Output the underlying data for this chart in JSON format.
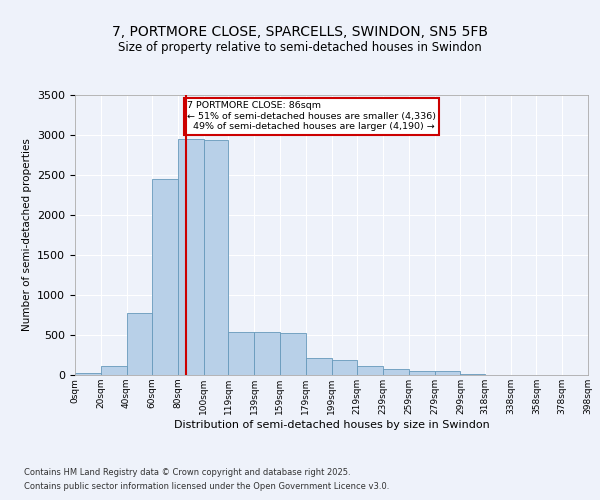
{
  "title_line1": "7, PORTMORE CLOSE, SPARCELLS, SWINDON, SN5 5FB",
  "title_line2": "Size of property relative to semi-detached houses in Swindon",
  "xlabel": "Distribution of semi-detached houses by size in Swindon",
  "ylabel": "Number of semi-detached properties",
  "property_label": "7 PORTMORE CLOSE: 86sqm",
  "pct_smaller": 51,
  "pct_larger": 49,
  "count_smaller": 4336,
  "count_larger": 4190,
  "bin_labels": [
    "0sqm",
    "20sqm",
    "40sqm",
    "60sqm",
    "80sqm",
    "100sqm",
    "119sqm",
    "139sqm",
    "159sqm",
    "179sqm",
    "199sqm",
    "219sqm",
    "239sqm",
    "259sqm",
    "279sqm",
    "299sqm",
    "318sqm",
    "338sqm",
    "358sqm",
    "378sqm",
    "398sqm"
  ],
  "bin_edges": [
    0,
    20,
    40,
    60,
    80,
    100,
    119,
    139,
    159,
    179,
    199,
    219,
    239,
    259,
    279,
    299,
    318,
    338,
    358,
    378,
    398
  ],
  "bar_values": [
    25,
    110,
    770,
    2450,
    2950,
    2940,
    540,
    540,
    530,
    210,
    190,
    110,
    80,
    55,
    45,
    10,
    5,
    2,
    1,
    0
  ],
  "bar_color": "#b8d0e8",
  "bar_edge_color": "#6699bb",
  "vline_x": 86,
  "vline_color": "#cc0000",
  "annotation_box_color": "#cc0000",
  "ylim": [
    0,
    3500
  ],
  "yticks": [
    0,
    500,
    1000,
    1500,
    2000,
    2500,
    3000,
    3500
  ],
  "background_color": "#eef2fa",
  "grid_color": "#ffffff",
  "footer_line1": "Contains HM Land Registry data © Crown copyright and database right 2025.",
  "footer_line2": "Contains public sector information licensed under the Open Government Licence v3.0."
}
